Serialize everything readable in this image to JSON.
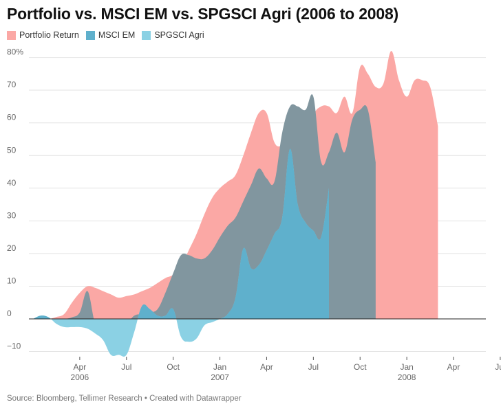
{
  "title": "Portfolio vs. MSCI EM vs. SPGSCI Agri (2006 to 2008)",
  "source": "Source: Bloomberg, Tellimer Research • Created with Datawrapper",
  "colors": {
    "portfolio": "#fba8a5",
    "msci": "#5fb0cc",
    "agri": "#8bd1e4",
    "overlap": "#81969f"
  },
  "chart_data": {
    "type": "area",
    "title": "Portfolio vs. MSCI EM vs. SPGSCI Agri (2006 to 2008)",
    "xlabel": "",
    "ylabel": "",
    "ylim": [
      -10,
      80
    ],
    "y_ticks": [
      {
        "value": 80,
        "label": "80%"
      },
      {
        "value": 70,
        "label": "70"
      },
      {
        "value": 60,
        "label": "60"
      },
      {
        "value": 50,
        "label": "50"
      },
      {
        "value": 40,
        "label": "40"
      },
      {
        "value": 30,
        "label": "30"
      },
      {
        "value": 20,
        "label": "20"
      },
      {
        "value": 10,
        "label": "10"
      },
      {
        "value": 0,
        "label": "0"
      },
      {
        "value": -10,
        "label": "−10"
      }
    ],
    "x_ticks": [
      {
        "month": 4,
        "label": "Apr",
        "sub": "2006"
      },
      {
        "month": 7,
        "label": "Jul",
        "sub": ""
      },
      {
        "month": 10,
        "label": "Oct",
        "sub": ""
      },
      {
        "month": 13,
        "label": "Jan",
        "sub": "2007"
      },
      {
        "month": 16,
        "label": "Apr",
        "sub": ""
      },
      {
        "month": 19,
        "label": "Jul",
        "sub": ""
      },
      {
        "month": 22,
        "label": "Oct",
        "sub": ""
      },
      {
        "month": 25,
        "label": "Jan",
        "sub": "2008"
      },
      {
        "month": 28,
        "label": "Apr",
        "sub": ""
      },
      {
        "month": 31,
        "label": "Jul",
        "sub": ""
      }
    ],
    "x_months": [
      1,
      1.5,
      2,
      2.5,
      3,
      3.5,
      4,
      4.5,
      5,
      5.5,
      6,
      6.5,
      7,
      7.5,
      8,
      8.5,
      9,
      9.5,
      10,
      10.5,
      11,
      11.5,
      12,
      12.5,
      13,
      13.5,
      14,
      14.5,
      15,
      15.5,
      16,
      16.5,
      17,
      17.5,
      18,
      18.5,
      19,
      19.5,
      20,
      20.5,
      21,
      21.5,
      22,
      22.5,
      23,
      23.5,
      24,
      24.5,
      25,
      25.5,
      26,
      26.5,
      27,
      27.5,
      28,
      28.5,
      29,
      29.5,
      30,
      30.5,
      31
    ],
    "series": [
      {
        "name": "Portfolio Return",
        "color": "#fba8a5",
        "values": [
          0,
          0.3,
          0,
          0.6,
          1.5,
          5,
          8,
          10,
          9.5,
          8.5,
          7.5,
          6.5,
          7,
          7.5,
          8.5,
          9.5,
          11,
          12.5,
          13.5,
          16,
          21,
          26,
          32,
          37,
          40,
          42,
          44,
          50,
          57,
          63,
          63,
          54,
          53,
          55,
          53,
          51,
          62,
          65,
          65,
          63,
          68,
          63,
          77,
          75,
          71,
          72,
          82,
          73,
          68,
          73,
          73,
          71,
          59
        ]
      },
      {
        "name": "MSCI EM",
        "color": "#5fb0cc",
        "values": [
          0,
          0,
          0,
          0,
          0,
          0.5,
          2,
          8.5,
          -1.5,
          -2,
          -2.5,
          -2.5,
          -1.5,
          1,
          1.5,
          2,
          3,
          8,
          14,
          19.5,
          19.5,
          18.5,
          18.5,
          21,
          25,
          28.5,
          31,
          36,
          41,
          46,
          43,
          42,
          57,
          65,
          65,
          64,
          68,
          48,
          51,
          57,
          51,
          61,
          64,
          64,
          48
        ]
      },
      {
        "name": "SPGSCI Agri",
        "color": "#8bd1e4",
        "values": [
          0,
          1,
          0.5,
          -1.5,
          -2.5,
          -2.5,
          -2.5,
          -3,
          -4.5,
          -6.5,
          -11,
          -11,
          -11,
          -4,
          4,
          3,
          1,
          1,
          3,
          -5.5,
          -7,
          -6,
          -2,
          -1,
          0,
          1.5,
          6.5,
          21.5,
          15.5,
          16.5,
          21,
          26,
          31,
          52,
          35,
          29.5,
          27,
          25,
          40
        ]
      }
    ],
    "x": {
      "msci": [
        1,
        1.5,
        2,
        2.5,
        3,
        3.5,
        4,
        4.5,
        5,
        5.5,
        6,
        6.5,
        7,
        7.5,
        8,
        8.5,
        9,
        9.5,
        10,
        10.5,
        11,
        11.5,
        12,
        12.5,
        13,
        13.5,
        14,
        14.5,
        15,
        15.5,
        16,
        16.5,
        17,
        17.5,
        18,
        18.5,
        19,
        19.5,
        20,
        20.5,
        21,
        21.5,
        22,
        22.5,
        23
      ],
      "agri": [
        1,
        1.5,
        2,
        2.5,
        3,
        3.5,
        4,
        4.5,
        5,
        5.5,
        6,
        6.5,
        7,
        7.5,
        8,
        8.5,
        9,
        9.5,
        10,
        10.5,
        11,
        11.5,
        12,
        12.5,
        13,
        13.5,
        14,
        14.5,
        15,
        15.5,
        16,
        16.5,
        17,
        17.5,
        18,
        18.5,
        19,
        19.5,
        20
      ]
    },
    "grid": true,
    "legend": "top-left"
  }
}
